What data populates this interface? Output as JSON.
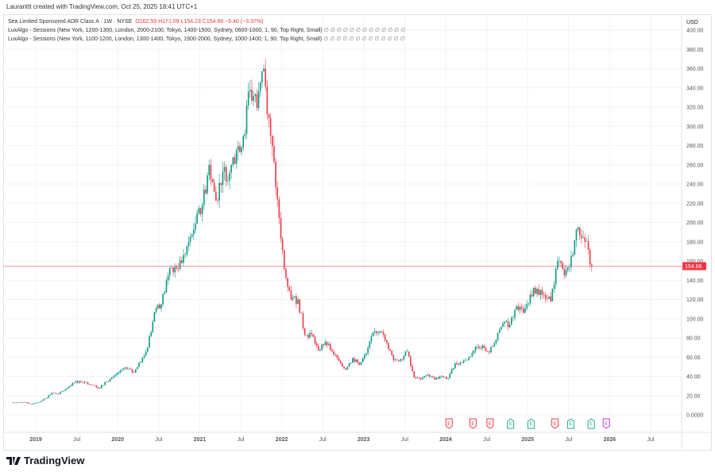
{
  "credit": "Lauranttt created with TradingView.com, Oct 25, 2025 18:41 UTC+1",
  "legend": {
    "symbol": "Sea Limited Sponsored ADR Class A · 1W · NYSE",
    "open": "O162.59",
    "high": "H171.09",
    "low": "L154.23",
    "close": "C154.66",
    "change": "−5.40 (−3.37%)",
    "indicator1": "LuxAlgo - Sessions (New York, 1200-1300, London, 2000-2100, Tokyo, 1400-1500, Sydney, 0600-1000, 1, 90, Top Right, Small)",
    "indicator2": "LuxAlgo - Sessions (New York, 1100-1200, London, 1300-1400, Tokyo, 1900-2000, Sydney, 1000-1400, 1, 90, Top Right, Small)",
    "placeholders": "∅ ∅ ∅ ∅ ∅ ∅ ∅ ∅ ∅ ∅ ∅ ∅ ∅"
  },
  "colors": {
    "up": "#089981",
    "down": "#f23645",
    "earn_up": "#22ab94",
    "earn_down": "#f23645",
    "dividend": "#c03ad6"
  },
  "footer": {
    "logo_text": "TradingView"
  },
  "chart_data": {
    "type": "candlestick",
    "title": "Sea Limited Sponsored ADR Class A · 1W · NYSE",
    "currency": "USD",
    "last_price": 154.66,
    "last_price_label": "154.66",
    "ylim": [
      0,
      400
    ],
    "yticks": [
      "0.0000",
      "20.00",
      "40.00",
      "60.00",
      "80.00",
      "100.00",
      "120.00",
      "140.00",
      "160.00",
      "180.00",
      "200.00",
      "220.00",
      "240.00",
      "260.00",
      "280.00",
      "300.00",
      "320.00",
      "340.00",
      "360.00",
      "380.00",
      "400.00"
    ],
    "xticks": [
      {
        "label": "2019",
        "month_index": 3,
        "bold": true
      },
      {
        "label": "Jul",
        "month_index": 9
      },
      {
        "label": "2020",
        "month_index": 15,
        "bold": true
      },
      {
        "label": "Jul",
        "month_index": 21
      },
      {
        "label": "2021",
        "month_index": 27,
        "bold": true
      },
      {
        "label": "Jul",
        "month_index": 33
      },
      {
        "label": "2022",
        "month_index": 39,
        "bold": true
      },
      {
        "label": "Jul",
        "month_index": 45
      },
      {
        "label": "2023",
        "month_index": 51,
        "bold": true
      },
      {
        "label": "Jul",
        "month_index": 57
      },
      {
        "label": "2024",
        "month_index": 63,
        "bold": true
      },
      {
        "label": "Jul",
        "month_index": 69
      },
      {
        "label": "2025",
        "month_index": 75,
        "bold": true
      },
      {
        "label": "Jul",
        "month_index": 81
      },
      {
        "label": "2026",
        "month_index": 87,
        "bold": true
      },
      {
        "label": "Jul",
        "month_index": 93
      }
    ],
    "start": "2018-10",
    "monthly_close": [
      13,
      13,
      11,
      13,
      17,
      23,
      22,
      27,
      33,
      35,
      34,
      31,
      28,
      35,
      40,
      46,
      48,
      44,
      55,
      70,
      107,
      115,
      145,
      154,
      158,
      180,
      199,
      218,
      260,
      223,
      253,
      252,
      275,
      290,
      338,
      319,
      360,
      290,
      224,
      152,
      120,
      120,
      83,
      84,
      67,
      76,
      66,
      56,
      47,
      59,
      52,
      64,
      86,
      87,
      75,
      57,
      58,
      66,
      39,
      37,
      42,
      37,
      40,
      38,
      54,
      54,
      60,
      71,
      72,
      65,
      78,
      95,
      94,
      113,
      106,
      125,
      131,
      125,
      118,
      160,
      145,
      165,
      195,
      180,
      154.66
    ],
    "earnings": [
      {
        "month_index": 63.5,
        "type": "down",
        "label": "E"
      },
      {
        "month_index": 67,
        "type": "down",
        "label": "E"
      },
      {
        "month_index": 69.5,
        "type": "down",
        "label": "E"
      },
      {
        "month_index": 72.5,
        "type": "up",
        "label": "E"
      },
      {
        "month_index": 75.5,
        "type": "up",
        "label": "E"
      },
      {
        "month_index": 79,
        "type": "down",
        "label": "E"
      },
      {
        "month_index": 81.3,
        "type": "up",
        "label": "E"
      },
      {
        "month_index": 84.3,
        "type": "up",
        "label": "E"
      },
      {
        "month_index": 86.5,
        "type": "dividend",
        "label": "E"
      }
    ]
  }
}
